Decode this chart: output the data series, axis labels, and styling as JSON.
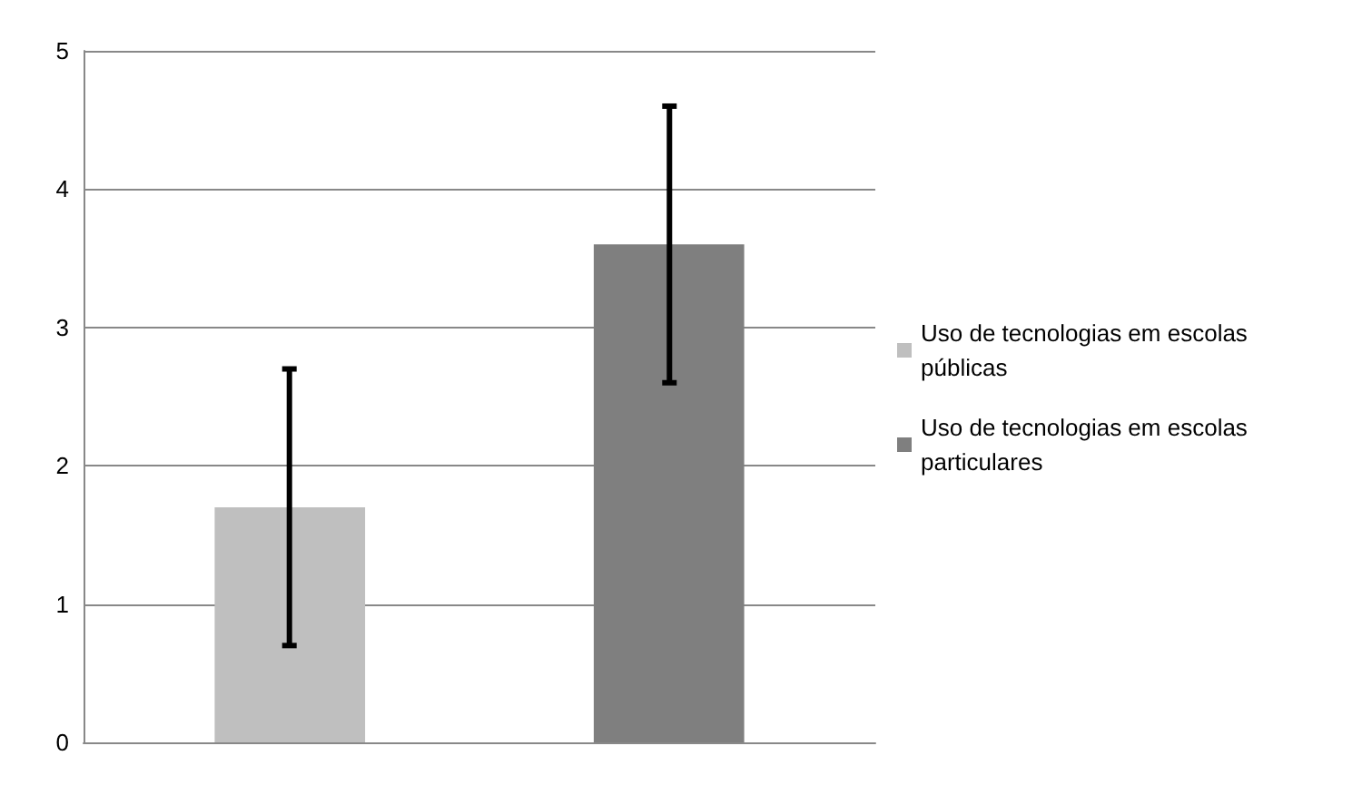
{
  "chart_data": {
    "type": "bar",
    "categories": [
      null
    ],
    "series": [
      {
        "name": "Uso de tecnologias em escolas públicas",
        "color": "#bfbfbf",
        "values": [
          1.7
        ],
        "errors": [
          1.0
        ]
      },
      {
        "name": "Uso de tecnologias em escolas particulares",
        "color": "#7f7f7f",
        "values": [
          3.6
        ],
        "errors": [
          1.0
        ]
      }
    ],
    "ylim": [
      0,
      5
    ],
    "yticks": [
      0,
      1,
      2,
      3,
      4,
      5
    ],
    "grid": "y",
    "legend": "right"
  }
}
